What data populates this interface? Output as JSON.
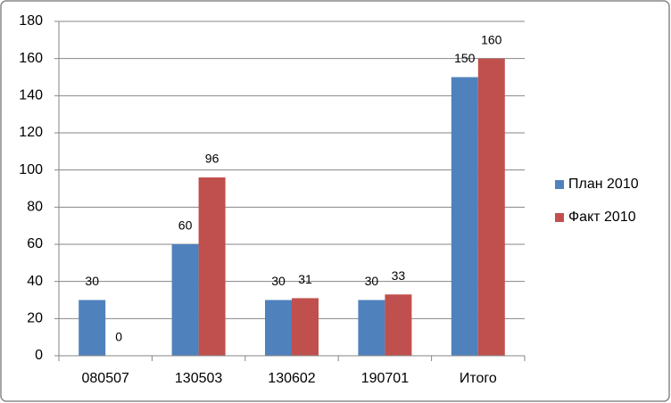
{
  "chart_data": {
    "type": "bar",
    "categories": [
      "080507",
      "130503",
      "130602",
      "190701",
      "Итого"
    ],
    "series": [
      {
        "name": "План 2010",
        "color": "#4f81bd",
        "values": [
          30,
          60,
          30,
          30,
          150
        ]
      },
      {
        "name": "Факт 2010",
        "color": "#c0504d",
        "values": [
          0,
          96,
          31,
          33,
          160
        ]
      }
    ],
    "ylim": [
      0,
      180
    ],
    "yticks": [
      0,
      20,
      40,
      60,
      80,
      100,
      120,
      140,
      160,
      180
    ],
    "grid": true,
    "legend": "right",
    "data_labels": true
  }
}
